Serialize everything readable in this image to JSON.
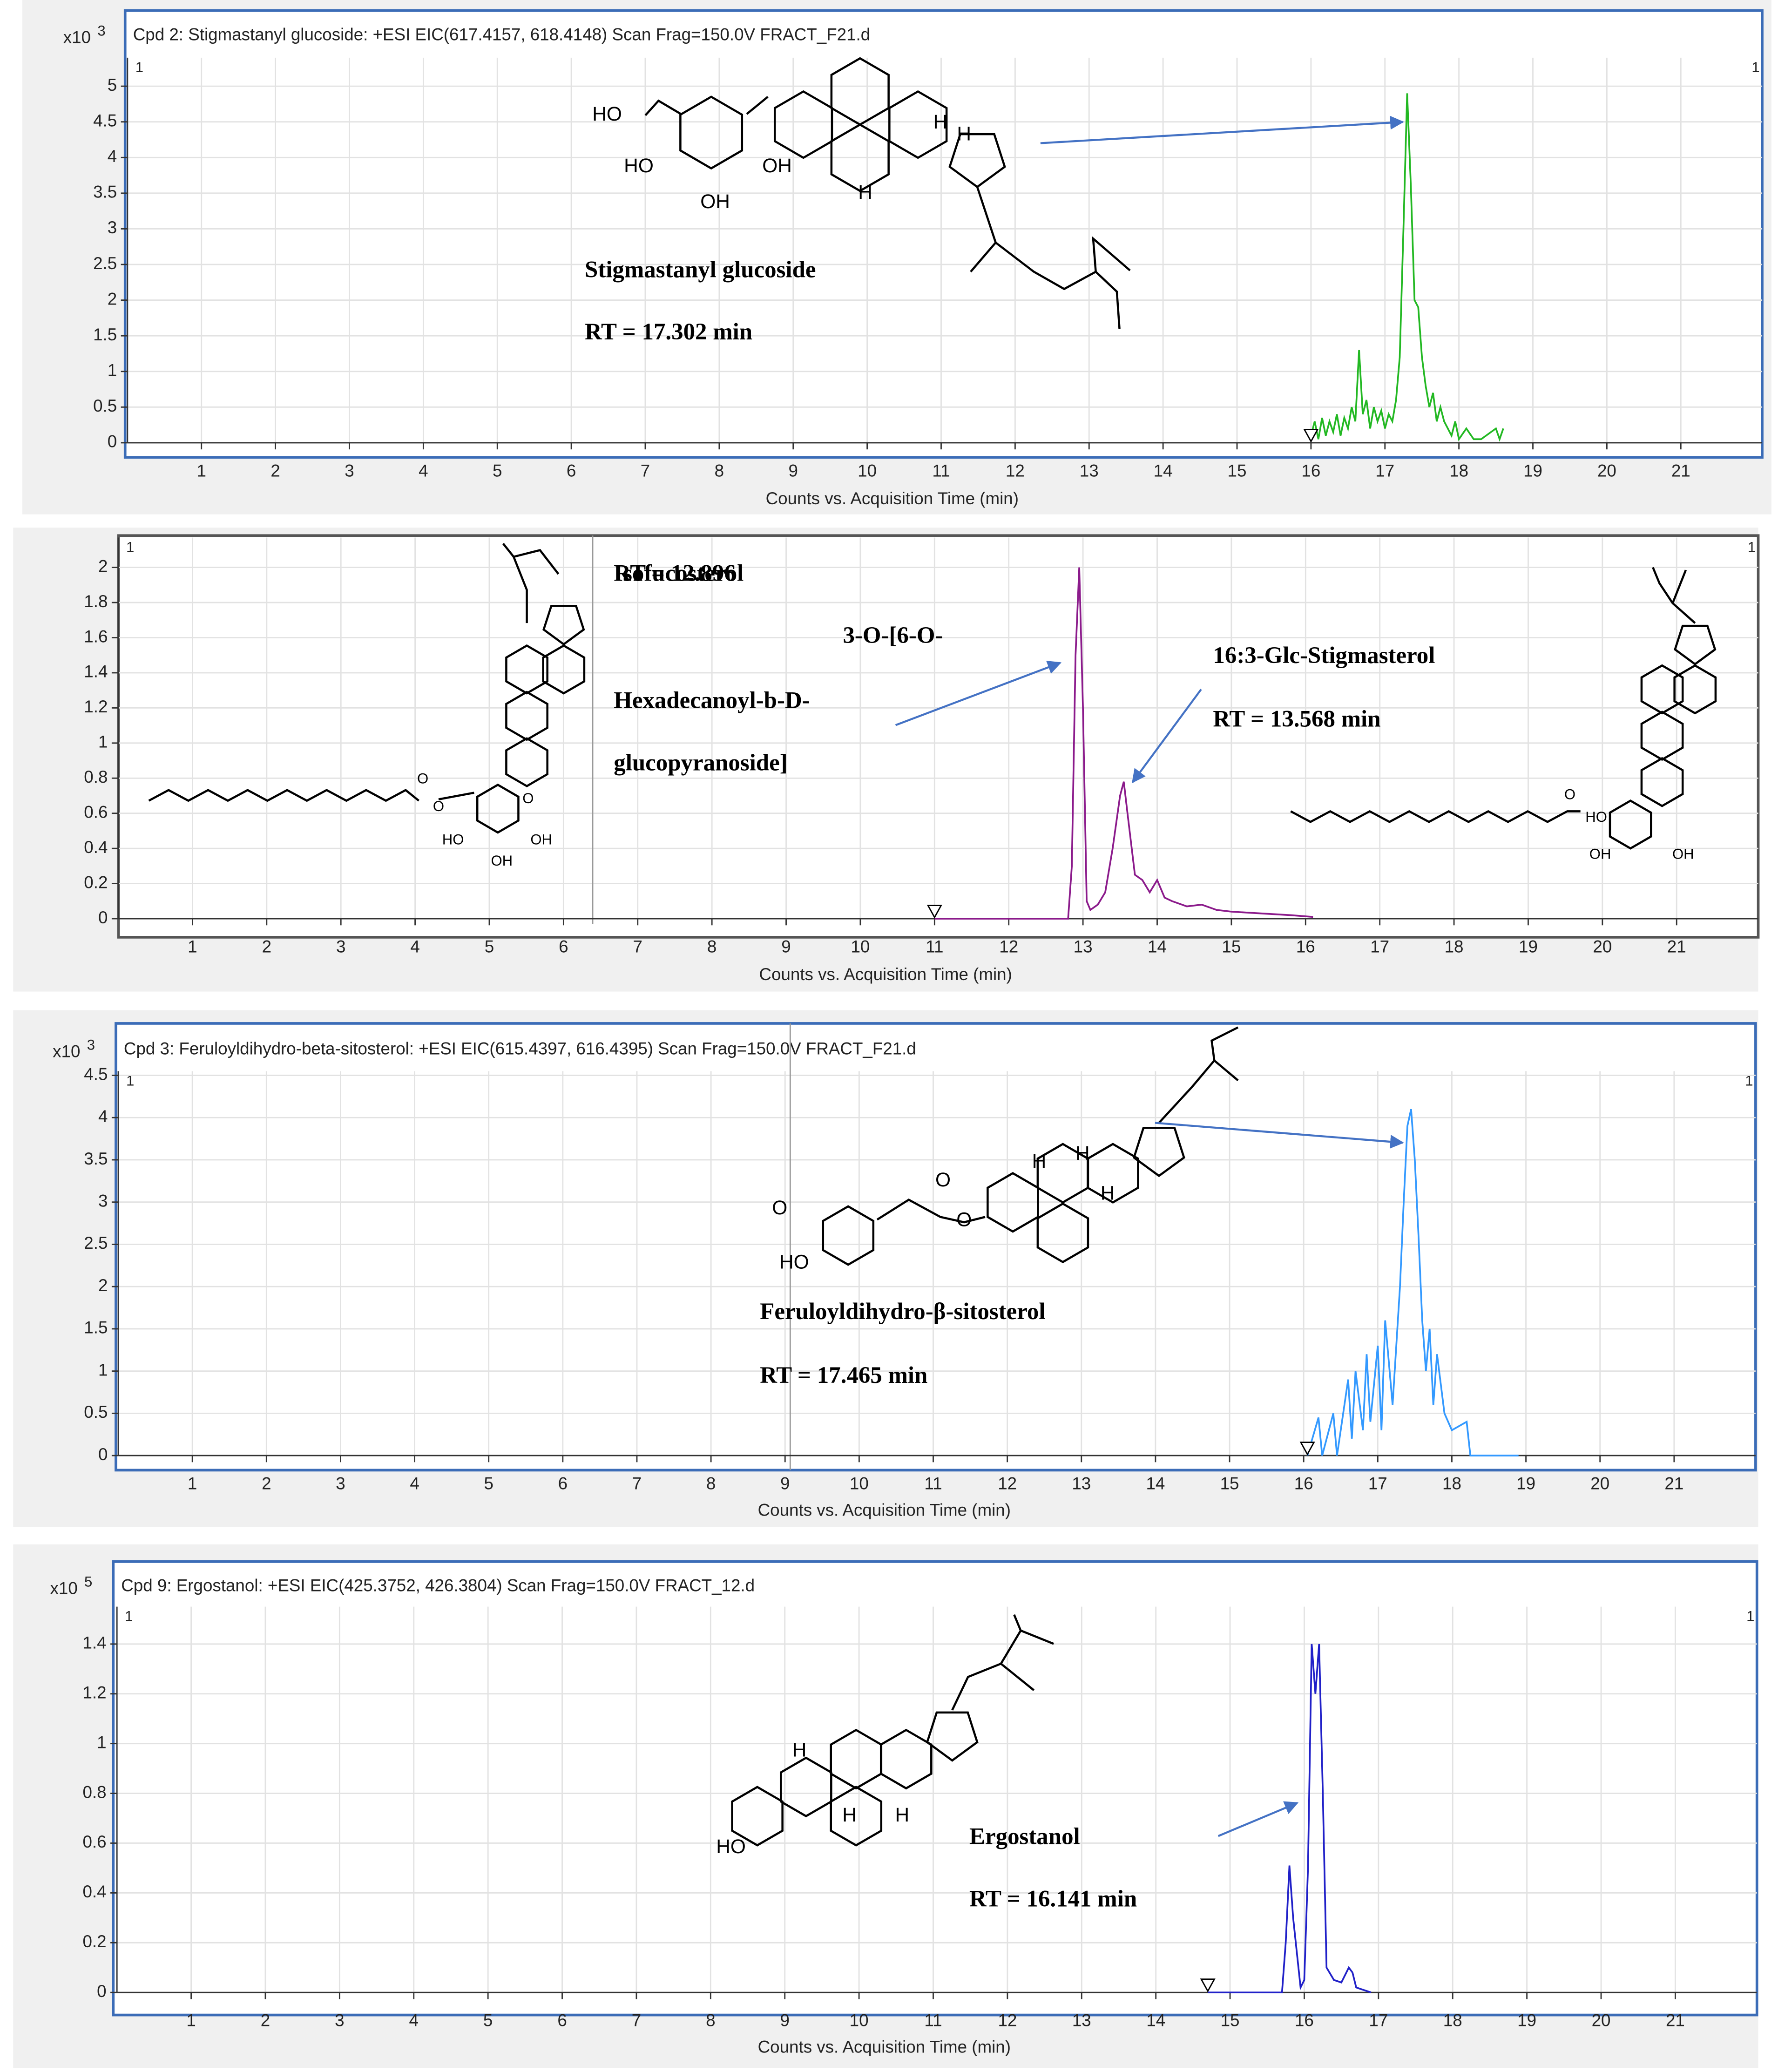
{
  "chart_data": [
    {
      "type": "line",
      "title": "Cpd 2: Stigmastanyl glucoside: +ESI EIC(617.4157, 618.4148) Scan Frag=150.0V FRACT_F21.d",
      "y_unit": "x10",
      "y_unit_exponent": "3",
      "corner_label": "1",
      "xlabel": "Counts vs. Acquisition Time (min)",
      "annotations": [
        "Stigmastanyl glucoside",
        "RT = 17.302 min"
      ],
      "structure_labels": [
        "HO",
        "HO",
        "OH",
        "OH",
        "H",
        "H",
        "H"
      ],
      "color": "#22b822",
      "grid": true,
      "xlim": [
        0,
        22.1
      ],
      "xticks": [
        1,
        2,
        3,
        4,
        5,
        6,
        7,
        8,
        9,
        10,
        11,
        12,
        13,
        14,
        15,
        16,
        17,
        18,
        19,
        20,
        21
      ],
      "ylim": [
        0,
        5.4
      ],
      "yticks": [
        0,
        0.5,
        1,
        1.5,
        2,
        2.5,
        3,
        3.5,
        4,
        4.5,
        5
      ],
      "x": [
        16.0,
        16.05,
        16.1,
        16.15,
        16.2,
        16.25,
        16.3,
        16.35,
        16.4,
        16.45,
        16.5,
        16.55,
        16.6,
        16.65,
        16.7,
        16.75,
        16.8,
        16.85,
        16.9,
        16.95,
        17.0,
        17.05,
        17.1,
        17.15,
        17.2,
        17.25,
        17.3,
        17.35,
        17.4,
        17.45,
        17.5,
        17.55,
        17.6,
        17.65,
        17.7,
        17.75,
        17.8,
        17.85,
        17.9,
        17.95,
        18.0,
        18.1,
        18.2,
        18.3,
        18.5,
        18.55,
        18.6
      ],
      "values": [
        0.1,
        0.3,
        0.05,
        0.35,
        0.1,
        0.3,
        0.15,
        0.4,
        0.1,
        0.35,
        0.2,
        0.5,
        0.3,
        1.3,
        0.4,
        0.6,
        0.2,
        0.5,
        0.3,
        0.45,
        0.2,
        0.4,
        0.3,
        0.6,
        1.2,
        3.0,
        4.9,
        3.6,
        2.0,
        1.9,
        1.2,
        0.8,
        0.5,
        0.7,
        0.3,
        0.5,
        0.3,
        0.2,
        0.1,
        0.3,
        0.05,
        0.2,
        0.05,
        0.05,
        0.2,
        0.05,
        0.2
      ]
    },
    {
      "type": "line",
      "corner_label": "1",
      "xlabel": "Counts vs. Acquisition Time (min)",
      "annotations": [
        "Isofucosterol",
        "3-O-[6-O-",
        "Hexadecanoyl-b-D-",
        "glucopyranoside]",
        "RT = 12.896",
        "16:3-Glc-Stigmasterol",
        "RT = 13.568 min"
      ],
      "structure_labels": [
        "O",
        "O",
        "HO",
        "OH",
        "OH",
        "O",
        "O",
        "HO",
        "OH",
        "OH"
      ],
      "color": "#8b1a8b",
      "grid": true,
      "xlim": [
        0,
        22.1
      ],
      "xticks": [
        1,
        2,
        3,
        4,
        5,
        6,
        7,
        8,
        9,
        10,
        11,
        12,
        13,
        14,
        15,
        16,
        17,
        18,
        19,
        20,
        21
      ],
      "ylim": [
        0,
        2.17
      ],
      "yticks": [
        0,
        0.2,
        0.4,
        0.6,
        0.8,
        1,
        1.2,
        1.4,
        1.6,
        1.8,
        2
      ],
      "x": [
        11.0,
        12.8,
        12.85,
        12.9,
        12.95,
        13.0,
        13.05,
        13.1,
        13.2,
        13.3,
        13.4,
        13.5,
        13.55,
        13.6,
        13.7,
        13.8,
        13.9,
        14.0,
        14.1,
        14.2,
        14.4,
        14.6,
        14.8,
        15.0,
        15.4,
        15.8,
        16.1
      ],
      "values": [
        0,
        0,
        0.3,
        1.5,
        2.0,
        1.2,
        0.1,
        0.05,
        0.08,
        0.15,
        0.4,
        0.7,
        0.78,
        0.6,
        0.25,
        0.22,
        0.15,
        0.22,
        0.12,
        0.1,
        0.07,
        0.08,
        0.05,
        0.04,
        0.03,
        0.02,
        0.01
      ]
    },
    {
      "type": "line",
      "title": "Cpd 3: Feruloyldihydro-beta-sitosterol: +ESI EIC(615.4397, 616.4395) Scan Frag=150.0V FRACT_F21.d",
      "y_unit": "x10",
      "y_unit_exponent": "3",
      "corner_label": "1",
      "xlabel": "Counts vs. Acquisition Time (min)",
      "annotations": [
        "Feruloyldihydro-β-sitosterol",
        "RT = 17.465 min"
      ],
      "structure_labels": [
        "O",
        "HO",
        "O",
        "O",
        "H",
        "H",
        "H"
      ],
      "color": "#3399ff",
      "grid": true,
      "xlim": [
        0,
        22.1
      ],
      "xticks": [
        1,
        2,
        3,
        4,
        5,
        6,
        7,
        8,
        9,
        10,
        11,
        12,
        13,
        14,
        15,
        16,
        17,
        18,
        19,
        20,
        21
      ],
      "ylim": [
        0,
        4.55
      ],
      "yticks": [
        0,
        0.5,
        1,
        1.5,
        2,
        2.5,
        3,
        3.5,
        4,
        4.5
      ],
      "x": [
        16.05,
        16.2,
        16.25,
        16.4,
        16.45,
        16.6,
        16.65,
        16.7,
        16.8,
        16.85,
        16.9,
        17.0,
        17.05,
        17.1,
        17.2,
        17.25,
        17.3,
        17.35,
        17.4,
        17.45,
        17.5,
        17.55,
        17.6,
        17.65,
        17.7,
        17.75,
        17.8,
        17.9,
        18.0,
        18.2,
        18.25,
        18.9
      ],
      "values": [
        0,
        0.45,
        0,
        0.5,
        0,
        0.9,
        0.2,
        1.0,
        0.3,
        1.2,
        0.4,
        1.3,
        0.3,
        1.6,
        0.6,
        1.3,
        2.0,
        3.0,
        3.9,
        4.1,
        3.5,
        2.6,
        1.6,
        1.0,
        1.5,
        0.6,
        1.2,
        0.5,
        0.3,
        0.4,
        0,
        0
      ]
    },
    {
      "type": "line",
      "title": "Cpd 9: Ergostanol: +ESI EIC(425.3752, 426.3804) Scan Frag=150.0V FRACT_12.d",
      "y_unit": "x10",
      "y_unit_exponent": "5",
      "corner_label": "1",
      "xlabel": "Counts vs. Acquisition Time (min)",
      "annotations": [
        "Ergostanol",
        "RT = 16.141 min"
      ],
      "structure_labels": [
        "HO",
        "H",
        "H",
        "H"
      ],
      "color": "#2020c8",
      "grid": true,
      "xlim": [
        0,
        22.1
      ],
      "xticks": [
        1,
        2,
        3,
        4,
        5,
        6,
        7,
        8,
        9,
        10,
        11,
        12,
        13,
        14,
        15,
        16,
        17,
        18,
        19,
        20,
        21
      ],
      "ylim": [
        0,
        1.55
      ],
      "yticks": [
        0,
        0.2,
        0.4,
        0.6,
        0.8,
        1,
        1.2,
        1.4
      ],
      "x": [
        14.7,
        15.7,
        15.75,
        15.8,
        15.85,
        15.95,
        16.0,
        16.05,
        16.1,
        16.15,
        16.2,
        16.25,
        16.3,
        16.4,
        16.5,
        16.6,
        16.65,
        16.7,
        16.9
      ],
      "values": [
        0,
        0,
        0.2,
        0.51,
        0.3,
        0.02,
        0.05,
        0.5,
        1.4,
        1.2,
        1.4,
        0.8,
        0.1,
        0.05,
        0.04,
        0.1,
        0.08,
        0.02,
        0
      ]
    }
  ]
}
